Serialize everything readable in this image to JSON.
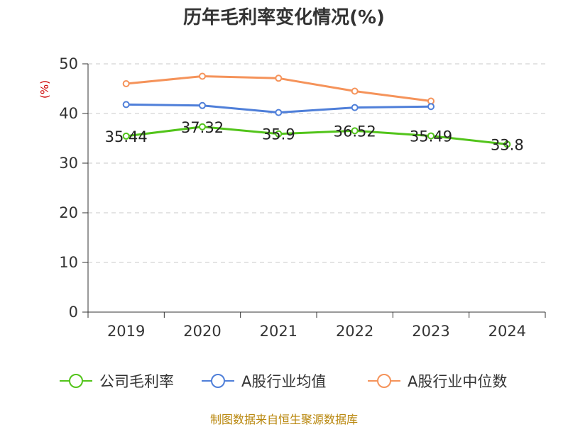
{
  "chart_data": {
    "type": "line",
    "title": "历年毛利率变化情况(%)",
    "ylabel": "(%)",
    "ylim": [
      0,
      50
    ],
    "yticks": [
      0,
      10,
      20,
      30,
      40,
      50
    ],
    "categories": [
      "2019",
      "2020",
      "2021",
      "2022",
      "2023",
      "2024"
    ],
    "grid": true,
    "legend_position": "bottom",
    "series": [
      {
        "name": "公司毛利率",
        "color": "#52c41a",
        "values": [
          35.44,
          37.32,
          35.9,
          36.52,
          35.49,
          33.8
        ],
        "data_labels": [
          "35.44",
          "37.32",
          "35.9",
          "36.52",
          "35.49",
          "33.8"
        ]
      },
      {
        "name": "A股行业均值",
        "color": "#4f7fd9",
        "values": [
          41.8,
          41.6,
          40.2,
          41.2,
          41.4,
          null
        ]
      },
      {
        "name": "A股行业中位数",
        "color": "#f5935a",
        "values": [
          46.0,
          47.5,
          47.1,
          44.5,
          42.5,
          null
        ]
      }
    ]
  },
  "source": "制图数据来自恒生聚源数据库"
}
